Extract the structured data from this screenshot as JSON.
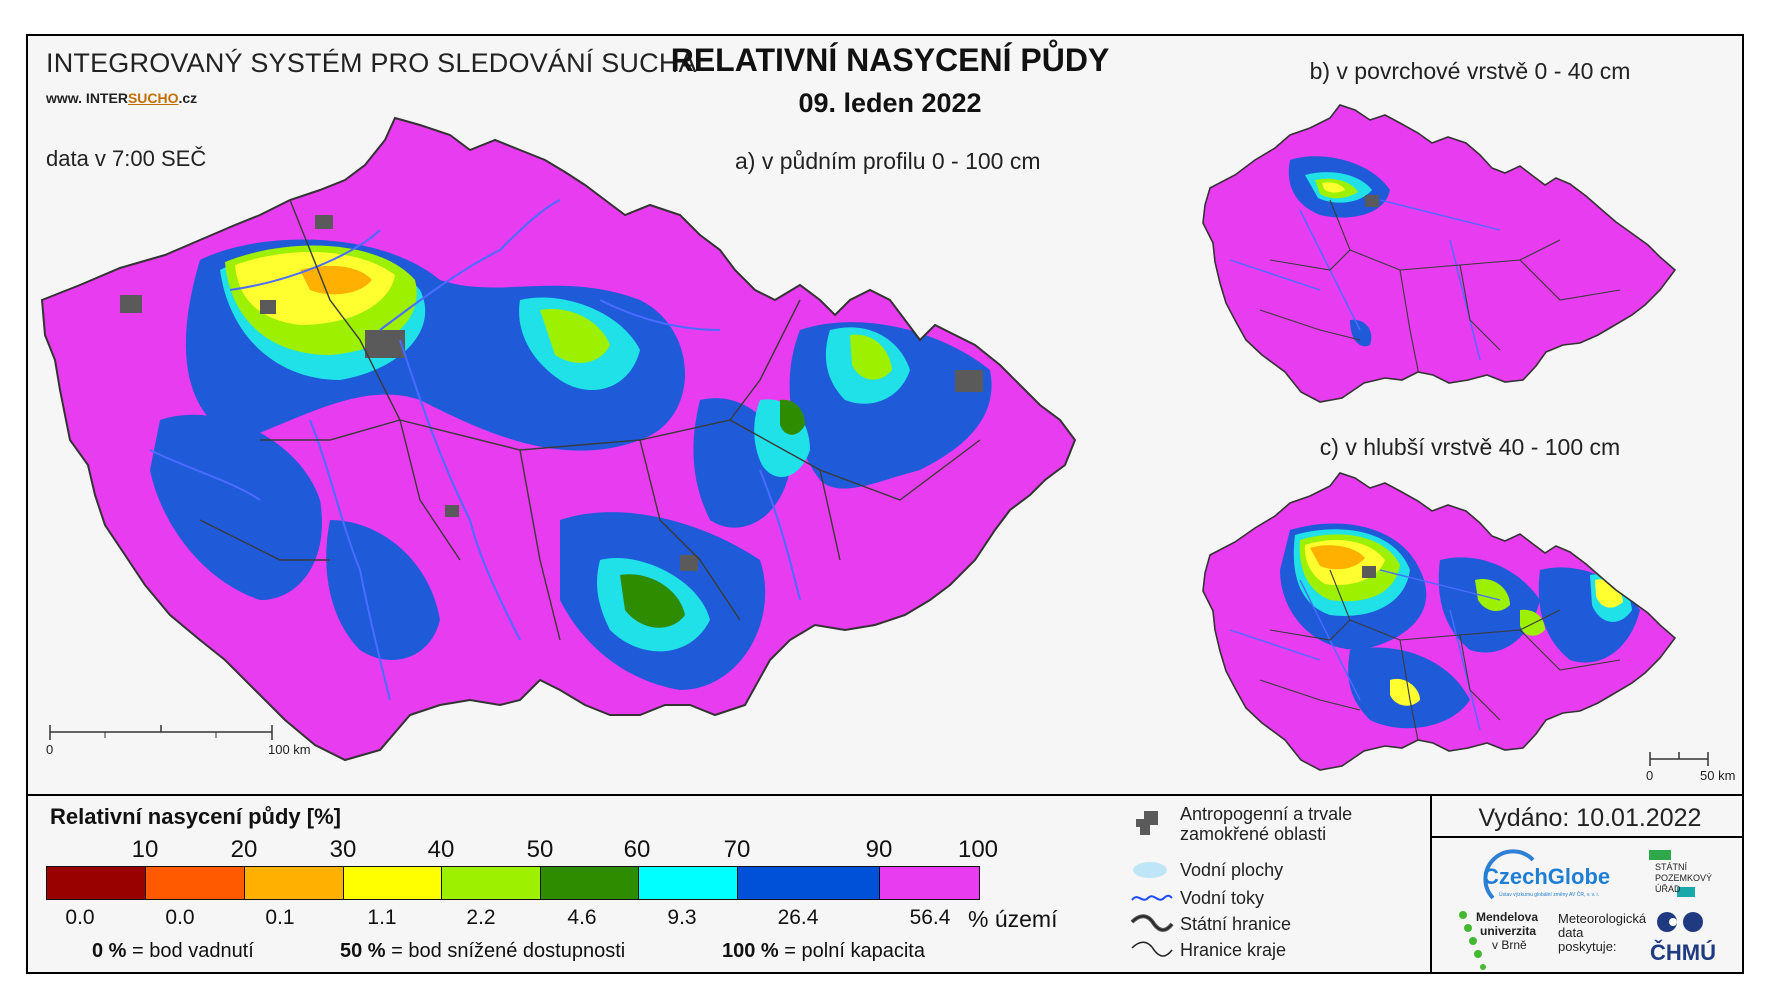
{
  "header": {
    "system_name": "INTEGROVANÝ SYSTÉM PRO SLEDOVÁNÍ SUCHA",
    "website_prefix": "www. INTER",
    "website_highlight": "SUCHO",
    "website_suffix": ".cz",
    "data_time": "data v 7:00 SEČ",
    "title": "RELATIVNÍ NASYCENÍ PŮDY",
    "date": "09. leden 2022"
  },
  "maps": {
    "a_label": "a) v půdním profilu 0 - 100 cm",
    "b_label": "b) v povrchové vrstvě 0 - 40 cm",
    "c_label": "c) v hlubší vrstvě 40 - 100 cm",
    "scale_a_start": "0",
    "scale_a_end": "100 km",
    "scale_c_start": "0",
    "scale_c_end": "50 km"
  },
  "legend": {
    "title": "Relativní nasycení půdy [%]",
    "thresholds": [
      "10",
      "20",
      "30",
      "40",
      "50",
      "60",
      "70",
      "90",
      "100"
    ],
    "classes": [
      {
        "color": "#990000",
        "pct": "0.0"
      },
      {
        "color": "#ff5a00",
        "pct": "0.0"
      },
      {
        "color": "#ffb000",
        "pct": "0.1"
      },
      {
        "color": "#ffff00",
        "pct": "1.1"
      },
      {
        "color": "#9cf000",
        "pct": "2.2"
      },
      {
        "color": "#2e8c00",
        "pct": "4.6"
      },
      {
        "color": "#00ffff",
        "pct": "9.3"
      },
      {
        "color": "#0050d8",
        "pct": "26.4"
      },
      {
        "color": "#e83cf0",
        "pct": "56.4"
      }
    ],
    "pct_unit": "% území",
    "note1_value": "0 %",
    "note1_text": "= bod vadnutí",
    "note2_value": "50 %",
    "note2_text": "= bod snížené dostupnosti",
    "note3_value": "100 %",
    "note3_text": "= polní kapacita"
  },
  "map_legend": {
    "anthropogenic_line1": "Antropogenní a trvale",
    "anthropogenic_line2": "zamokřené oblasti",
    "water_bodies": "Vodní plochy",
    "rivers": "Vodní toky",
    "state_border": "Státní hranice",
    "region_border": "Hranice kraje"
  },
  "footer": {
    "issued": "Vydáno: 10.01.2022",
    "czechglobe": "CzechGlobe",
    "czechglobe_sub": "Ústav výzkumu globální změny AV ČR, v. v. i.",
    "spu_line1": "STÁTNÍ",
    "spu_line2": "POZEMKOVÝ",
    "spu_line3": "ÚŘAD",
    "mendel_line1": "Mendelova",
    "mendel_line2": "univerzita",
    "mendel_line3": "v Brně",
    "meteo_line1": "Meteorologická",
    "meteo_line2": "data",
    "meteo_line3": "poskytuje:",
    "chmu": "ČHMÚ"
  },
  "colors": {
    "magenta": "#e83cf0",
    "blue": "#1f5ad8",
    "cyan": "#20e0e8",
    "green": "#2e8c00",
    "lightgreen": "#9cf000",
    "yellow": "#ffff30",
    "orange": "#ffb000",
    "anthropogenic": "#5a5a5a",
    "river": "#4a6cff"
  }
}
